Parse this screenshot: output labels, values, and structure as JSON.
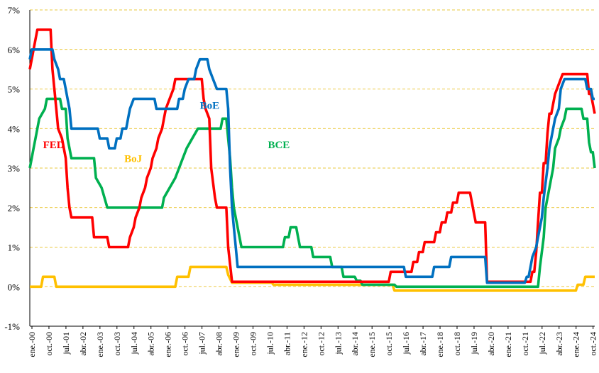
{
  "chart_data": {
    "type": "line",
    "title": "",
    "xlabel": "",
    "ylabel": "",
    "ylim": [
      -1,
      7
    ],
    "y_ticks": [
      "-1%",
      "0%",
      "1%",
      "2%",
      "3%",
      "4%",
      "5%",
      "6%",
      "7%"
    ],
    "x_ticks": [
      "ene.-00",
      "oct.-00",
      "jul.-01",
      "abr.-02",
      "ene.-03",
      "oct.-03",
      "jul.-04",
      "abr.-05",
      "ene.-06",
      "oct.-06",
      "jul.-07",
      "abr.-08",
      "ene.-09",
      "oct.-09",
      "jul.-10",
      "abr.-11",
      "ene.-12",
      "oct.-12",
      "jul.-13",
      "abr.-14",
      "ene.-15",
      "oct.-15",
      "jul.-16",
      "abr.-17",
      "ene.-18",
      "oct.-18",
      "jul.-19",
      "abr.-20",
      "ene.-21",
      "oct.-21",
      "jul.-22",
      "abr.-23",
      "ene.-24",
      "oct.-24"
    ],
    "x_range": [
      "2000-01",
      "2024-12"
    ],
    "grid": "horizontal dashed",
    "series": [
      {
        "name": "FED",
        "color": "#ff0000",
        "points": [
          [
            "2000-01",
            5.5
          ],
          [
            "2000-02",
            5.75
          ],
          [
            "2000-03",
            6.0
          ],
          [
            "2000-05",
            6.5
          ],
          [
            "2000-12",
            6.5
          ],
          [
            "2001-01",
            5.5
          ],
          [
            "2001-02",
            5.0
          ],
          [
            "2001-03",
            4.5
          ],
          [
            "2001-04",
            4.0
          ],
          [
            "2001-06",
            3.75
          ],
          [
            "2001-08",
            3.25
          ],
          [
            "2001-09",
            2.5
          ],
          [
            "2001-10",
            2.0
          ],
          [
            "2001-11",
            1.75
          ],
          [
            "2002-10",
            1.75
          ],
          [
            "2002-11",
            1.25
          ],
          [
            "2003-06",
            1.25
          ],
          [
            "2003-07",
            1.0
          ],
          [
            "2004-05",
            1.0
          ],
          [
            "2004-06",
            1.25
          ],
          [
            "2004-08",
            1.5
          ],
          [
            "2004-09",
            1.75
          ],
          [
            "2004-11",
            2.0
          ],
          [
            "2004-12",
            2.25
          ],
          [
            "2005-02",
            2.5
          ],
          [
            "2005-03",
            2.75
          ],
          [
            "2005-05",
            3.0
          ],
          [
            "2005-06",
            3.25
          ],
          [
            "2005-08",
            3.5
          ],
          [
            "2005-09",
            3.75
          ],
          [
            "2005-11",
            4.0
          ],
          [
            "2005-12",
            4.25
          ],
          [
            "2006-01",
            4.5
          ],
          [
            "2006-03",
            4.75
          ],
          [
            "2006-05",
            5.0
          ],
          [
            "2006-06",
            5.25
          ],
          [
            "2007-08",
            5.25
          ],
          [
            "2007-09",
            4.75
          ],
          [
            "2007-10",
            4.5
          ],
          [
            "2007-12",
            4.25
          ],
          [
            "2008-01",
            3.0
          ],
          [
            "2008-03",
            2.25
          ],
          [
            "2008-04",
            2.0
          ],
          [
            "2008-09",
            2.0
          ],
          [
            "2008-10",
            1.0
          ],
          [
            "2008-12",
            0.125
          ],
          [
            "2015-11",
            0.125
          ],
          [
            "2015-12",
            0.375
          ],
          [
            "2016-11",
            0.375
          ],
          [
            "2016-12",
            0.625
          ],
          [
            "2017-02",
            0.625
          ],
          [
            "2017-03",
            0.875
          ],
          [
            "2017-05",
            0.875
          ],
          [
            "2017-06",
            1.125
          ],
          [
            "2017-11",
            1.125
          ],
          [
            "2017-12",
            1.375
          ],
          [
            "2018-02",
            1.375
          ],
          [
            "2018-03",
            1.625
          ],
          [
            "2018-05",
            1.625
          ],
          [
            "2018-06",
            1.875
          ],
          [
            "2018-08",
            1.875
          ],
          [
            "2018-09",
            2.125
          ],
          [
            "2018-11",
            2.125
          ],
          [
            "2018-12",
            2.375
          ],
          [
            "2019-06",
            2.375
          ],
          [
            "2019-07",
            2.125
          ],
          [
            "2019-08",
            1.875
          ],
          [
            "2019-09",
            1.625
          ],
          [
            "2019-12",
            1.625
          ],
          [
            "2020-02",
            1.625
          ],
          [
            "2020-03",
            0.125
          ],
          [
            "2022-02",
            0.125
          ],
          [
            "2022-03",
            0.375
          ],
          [
            "2022-04",
            0.375
          ],
          [
            "2022-05",
            0.875
          ],
          [
            "2022-06",
            1.625
          ],
          [
            "2022-07",
            2.375
          ],
          [
            "2022-08",
            2.375
          ],
          [
            "2022-09",
            3.125
          ],
          [
            "2022-10",
            3.125
          ],
          [
            "2022-11",
            3.875
          ],
          [
            "2022-12",
            4.375
          ],
          [
            "2023-01",
            4.375
          ],
          [
            "2023-02",
            4.625
          ],
          [
            "2023-03",
            4.875
          ],
          [
            "2023-05",
            5.125
          ],
          [
            "2023-07",
            5.375
          ],
          [
            "2024-08",
            5.375
          ],
          [
            "2024-09",
            4.875
          ],
          [
            "2024-10",
            4.875
          ],
          [
            "2024-11",
            4.625
          ],
          [
            "2024-12",
            4.375
          ]
        ]
      },
      {
        "name": "BoE",
        "color": "#0070c0",
        "points": [
          [
            "2000-01",
            5.75
          ],
          [
            "2000-02",
            6.0
          ],
          [
            "2001-01",
            6.0
          ],
          [
            "2001-02",
            5.75
          ],
          [
            "2001-04",
            5.5
          ],
          [
            "2001-05",
            5.25
          ],
          [
            "2001-07",
            5.25
          ],
          [
            "2001-08",
            5.0
          ],
          [
            "2001-09",
            4.75
          ],
          [
            "2001-10",
            4.5
          ],
          [
            "2001-11",
            4.0
          ],
          [
            "2003-01",
            4.0
          ],
          [
            "2003-02",
            3.75
          ],
          [
            "2003-06",
            3.75
          ],
          [
            "2003-07",
            3.5
          ],
          [
            "2003-10",
            3.5
          ],
          [
            "2003-11",
            3.75
          ],
          [
            "2004-01",
            3.75
          ],
          [
            "2004-02",
            4.0
          ],
          [
            "2004-04",
            4.0
          ],
          [
            "2004-05",
            4.25
          ],
          [
            "2004-06",
            4.5
          ],
          [
            "2004-08",
            4.75
          ],
          [
            "2005-07",
            4.75
          ],
          [
            "2005-08",
            4.5
          ],
          [
            "2006-07",
            4.5
          ],
          [
            "2006-08",
            4.75
          ],
          [
            "2006-10",
            4.75
          ],
          [
            "2006-11",
            5.0
          ],
          [
            "2007-01",
            5.25
          ],
          [
            "2007-04",
            5.25
          ],
          [
            "2007-05",
            5.5
          ],
          [
            "2007-07",
            5.75
          ],
          [
            "2007-11",
            5.75
          ],
          [
            "2007-12",
            5.5
          ],
          [
            "2008-02",
            5.25
          ],
          [
            "2008-04",
            5.0
          ],
          [
            "2008-09",
            5.0
          ],
          [
            "2008-10",
            4.5
          ],
          [
            "2008-11",
            3.0
          ],
          [
            "2008-12",
            2.0
          ],
          [
            "2009-01",
            1.5
          ],
          [
            "2009-02",
            1.0
          ],
          [
            "2009-03",
            0.5
          ],
          [
            "2016-07",
            0.5
          ],
          [
            "2016-08",
            0.25
          ],
          [
            "2017-10",
            0.25
          ],
          [
            "2017-11",
            0.5
          ],
          [
            "2018-07",
            0.5
          ],
          [
            "2018-08",
            0.75
          ],
          [
            "2020-02",
            0.75
          ],
          [
            "2020-03",
            0.1
          ],
          [
            "2021-11",
            0.1
          ],
          [
            "2021-12",
            0.25
          ],
          [
            "2022-01",
            0.25
          ],
          [
            "2022-02",
            0.5
          ],
          [
            "2022-03",
            0.75
          ],
          [
            "2022-05",
            1.0
          ],
          [
            "2022-06",
            1.25
          ],
          [
            "2022-08",
            1.75
          ],
          [
            "2022-09",
            2.25
          ],
          [
            "2022-11",
            3.0
          ],
          [
            "2022-12",
            3.5
          ],
          [
            "2023-02",
            4.0
          ],
          [
            "2023-03",
            4.25
          ],
          [
            "2023-05",
            4.5
          ],
          [
            "2023-06",
            5.0
          ],
          [
            "2023-08",
            5.25
          ],
          [
            "2024-07",
            5.25
          ],
          [
            "2024-08",
            5.0
          ],
          [
            "2024-10",
            5.0
          ],
          [
            "2024-11",
            4.75
          ],
          [
            "2024-12",
            4.75
          ]
        ]
      },
      {
        "name": "BCE",
        "color": "#00b050",
        "points": [
          [
            "2000-01",
            3.0
          ],
          [
            "2000-02",
            3.25
          ],
          [
            "2000-03",
            3.5
          ],
          [
            "2000-04",
            3.75
          ],
          [
            "2000-06",
            4.25
          ],
          [
            "2000-09",
            4.5
          ],
          [
            "2000-10",
            4.75
          ],
          [
            "2001-05",
            4.75
          ],
          [
            "2001-06",
            4.5
          ],
          [
            "2001-08",
            4.5
          ],
          [
            "2001-09",
            3.75
          ],
          [
            "2001-11",
            3.25
          ],
          [
            "2002-11",
            3.25
          ],
          [
            "2002-12",
            2.75
          ],
          [
            "2003-03",
            2.5
          ],
          [
            "2003-06",
            2.0
          ],
          [
            "2005-11",
            2.0
          ],
          [
            "2005-12",
            2.25
          ],
          [
            "2006-03",
            2.5
          ],
          [
            "2006-06",
            2.75
          ],
          [
            "2006-08",
            3.0
          ],
          [
            "2006-10",
            3.25
          ],
          [
            "2006-12",
            3.5
          ],
          [
            "2007-03",
            3.75
          ],
          [
            "2007-06",
            4.0
          ],
          [
            "2008-06",
            4.0
          ],
          [
            "2008-07",
            4.25
          ],
          [
            "2008-09",
            4.25
          ],
          [
            "2008-10",
            3.75
          ],
          [
            "2008-11",
            3.25
          ],
          [
            "2008-12",
            2.5
          ],
          [
            "2009-01",
            2.0
          ],
          [
            "2009-03",
            1.5
          ],
          [
            "2009-04",
            1.25
          ],
          [
            "2009-05",
            1.0
          ],
          [
            "2011-03",
            1.0
          ],
          [
            "2011-04",
            1.25
          ],
          [
            "2011-06",
            1.25
          ],
          [
            "2011-07",
            1.5
          ],
          [
            "2011-10",
            1.5
          ],
          [
            "2011-11",
            1.25
          ],
          [
            "2011-12",
            1.0
          ],
          [
            "2012-06",
            1.0
          ],
          [
            "2012-07",
            0.75
          ],
          [
            "2013-04",
            0.75
          ],
          [
            "2013-05",
            0.5
          ],
          [
            "2013-10",
            0.5
          ],
          [
            "2013-11",
            0.25
          ],
          [
            "2014-05",
            0.25
          ],
          [
            "2014-06",
            0.15
          ],
          [
            "2014-08",
            0.15
          ],
          [
            "2014-09",
            0.05
          ],
          [
            "2016-02",
            0.05
          ],
          [
            "2016-03",
            0.0
          ],
          [
            "2022-06",
            0.0
          ],
          [
            "2022-07",
            0.5
          ],
          [
            "2022-09",
            1.25
          ],
          [
            "2022-10",
            2.0
          ],
          [
            "2022-12",
            2.5
          ],
          [
            "2023-02",
            3.0
          ],
          [
            "2023-03",
            3.5
          ],
          [
            "2023-05",
            3.75
          ],
          [
            "2023-06",
            4.0
          ],
          [
            "2023-08",
            4.25
          ],
          [
            "2023-09",
            4.5
          ],
          [
            "2024-05",
            4.5
          ],
          [
            "2024-06",
            4.25
          ],
          [
            "2024-08",
            4.25
          ],
          [
            "2024-09",
            3.65
          ],
          [
            "2024-10",
            3.4
          ],
          [
            "2024-11",
            3.4
          ],
          [
            "2024-12",
            3.0
          ]
        ]
      },
      {
        "name": "BoJ",
        "color": "#ffc000",
        "points": [
          [
            "2000-01",
            0.0
          ],
          [
            "2000-07",
            0.0
          ],
          [
            "2000-08",
            0.25
          ],
          [
            "2001-02",
            0.25
          ],
          [
            "2001-03",
            0.0
          ],
          [
            "2006-06",
            0.0
          ],
          [
            "2006-07",
            0.25
          ],
          [
            "2007-01",
            0.25
          ],
          [
            "2007-02",
            0.5
          ],
          [
            "2008-09",
            0.5
          ],
          [
            "2008-10",
            0.3
          ],
          [
            "2008-12",
            0.1
          ],
          [
            "2010-09",
            0.1
          ],
          [
            "2010-10",
            0.05
          ],
          [
            "2016-01",
            0.05
          ],
          [
            "2016-02",
            -0.1
          ],
          [
            "2024-02",
            -0.1
          ],
          [
            "2024-03",
            0.05
          ],
          [
            "2024-06",
            0.05
          ],
          [
            "2024-07",
            0.25
          ],
          [
            "2024-12",
            0.25
          ]
        ]
      }
    ],
    "annotations": [
      {
        "text": "FED",
        "color": "#ff0000",
        "x": "2000-08",
        "y": 3.5
      },
      {
        "text": "BoE",
        "color": "#0070c0",
        "x": "2007-07",
        "y": 4.5
      },
      {
        "text": "BCE",
        "color": "#00b050",
        "x": "2010-07",
        "y": 3.5
      },
      {
        "text": "BoJ",
        "color": "#ffc000",
        "x": "2004-03",
        "y": 3.15
      }
    ]
  }
}
